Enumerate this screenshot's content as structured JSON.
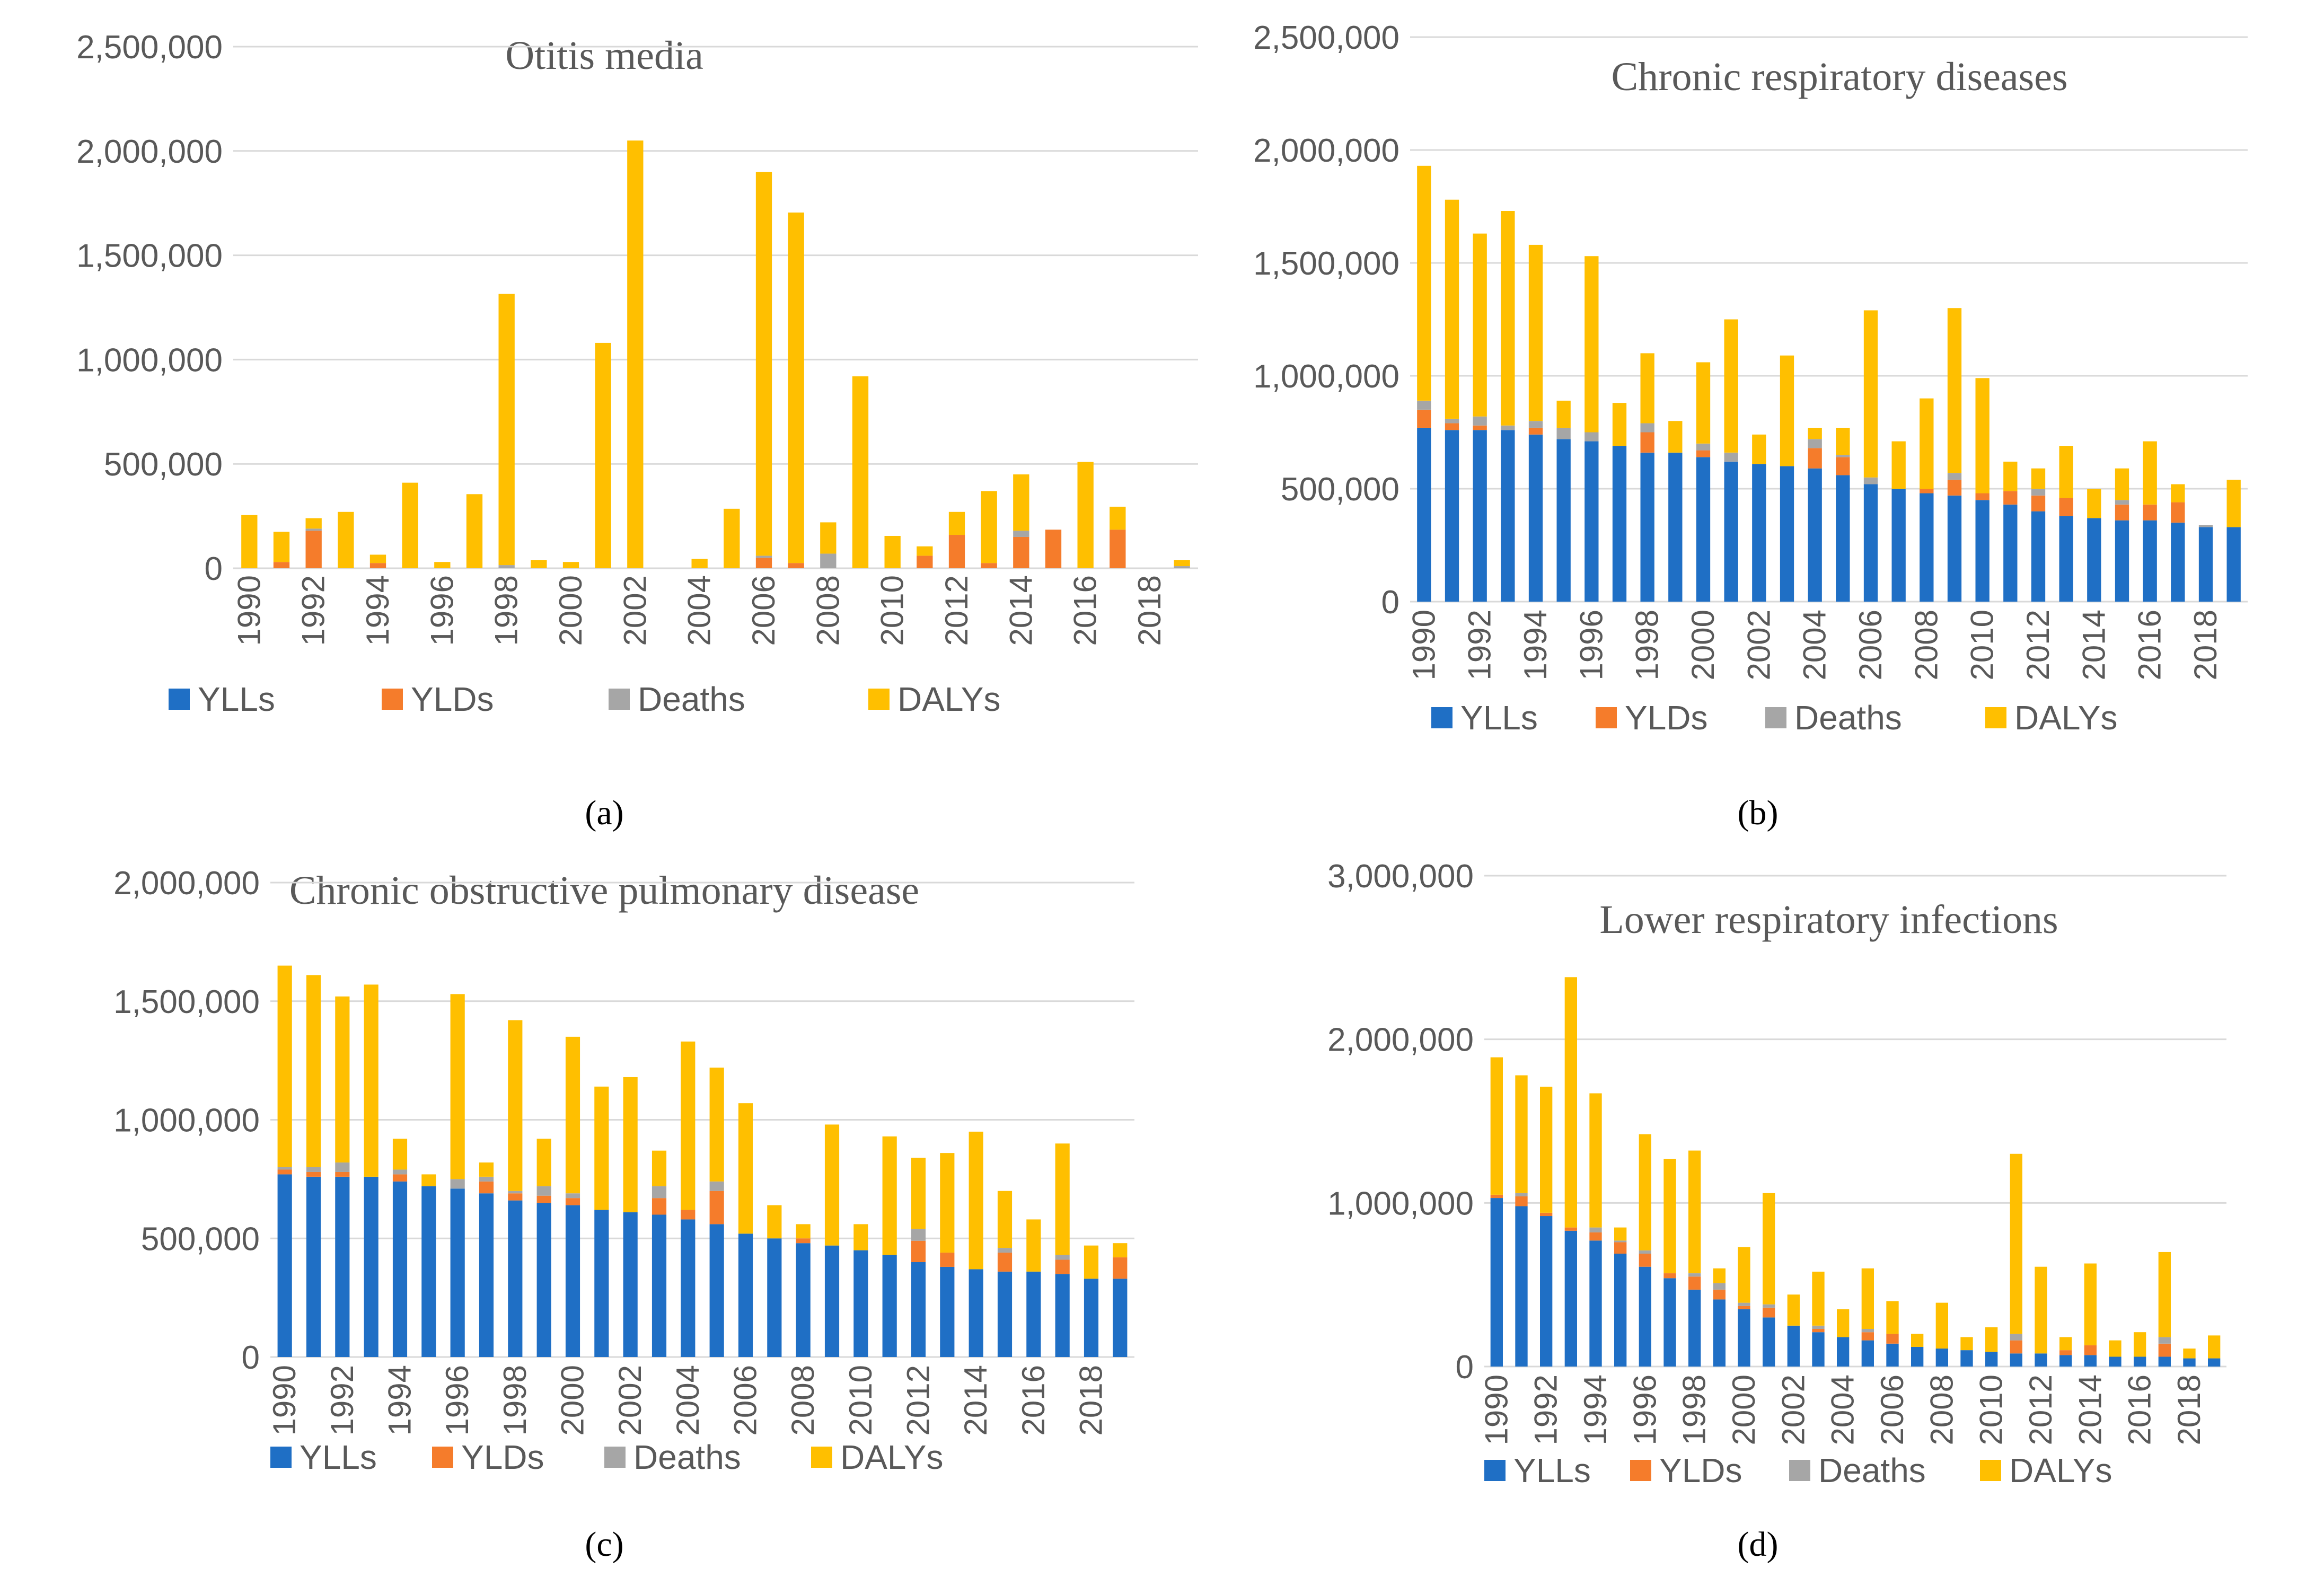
{
  "colors": {
    "YLLs": "#1F6FC5",
    "YLDs": "#F57C2B",
    "Deaths": "#A6A6A6",
    "DALYs": "#FFBF00",
    "grid": "#D9D9D9"
  },
  "chart_data": [
    {
      "id": "a",
      "type": "bar",
      "stacked": true,
      "title": "Otitis media",
      "caption_label": "(a)",
      "ylim": [
        0,
        2500000
      ],
      "yticks": [
        "0",
        "500,000",
        "1,000,000",
        "1,500,000",
        "2,000,000",
        "2,500,000"
      ],
      "xticks": [
        "1990",
        "1992",
        "1994",
        "1996",
        "1998",
        "2000",
        "2002",
        "2004",
        "2006",
        "2008",
        "2010",
        "2012",
        "2014",
        "2016",
        "2018"
      ],
      "legend": [
        "YLLs",
        "YLDs",
        "Deaths",
        "DALYs"
      ],
      "categories": [
        1990,
        1991,
        1992,
        1993,
        1994,
        1995,
        1996,
        1997,
        1998,
        1999,
        2000,
        2001,
        2002,
        2003,
        2004,
        2005,
        2006,
        2007,
        2008,
        2009,
        2010,
        2011,
        2012,
        2013,
        2014,
        2015,
        2016,
        2017,
        2018,
        2019
      ],
      "series": [
        {
          "name": "YLLs",
          "values": [
            0,
            0,
            0,
            0,
            0,
            0,
            0,
            0,
            0,
            0,
            0,
            0,
            0,
            0,
            0,
            0,
            0,
            0,
            0,
            0,
            0,
            0,
            0,
            0,
            0,
            0,
            0,
            0,
            0,
            0
          ]
        },
        {
          "name": "YLDs",
          "values": [
            0,
            30000,
            180000,
            0,
            25000,
            0,
            0,
            0,
            0,
            0,
            0,
            0,
            0,
            0,
            0,
            0,
            50000,
            25000,
            0,
            0,
            0,
            60000,
            160000,
            25000,
            150000,
            185000,
            0,
            185000,
            0,
            0
          ]
        },
        {
          "name": "Deaths",
          "values": [
            0,
            0,
            10000,
            0,
            0,
            0,
            0,
            0,
            15000,
            0,
            0,
            0,
            0,
            0,
            0,
            0,
            10000,
            0,
            70000,
            0,
            0,
            0,
            0,
            0,
            30000,
            0,
            0,
            0,
            0,
            10000
          ]
        },
        {
          "name": "DALYs",
          "values": [
            255000,
            145000,
            50000,
            270000,
            40000,
            410000,
            30000,
            355000,
            1300000,
            40000,
            30000,
            1080000,
            2050000,
            0,
            45000,
            285000,
            1840000,
            1680000,
            150000,
            920000,
            155000,
            45000,
            110000,
            345000,
            270000,
            0,
            510000,
            110000,
            0,
            30000
          ]
        }
      ]
    },
    {
      "id": "b",
      "type": "bar",
      "stacked": true,
      "title": "Chronic respiratory diseases",
      "caption_label": "(b)",
      "ylim": [
        0,
        2500000
      ],
      "yticks": [
        "0",
        "500,000",
        "1,000,000",
        "1,500,000",
        "2,000,000",
        "2,500,000"
      ],
      "xticks": [
        "1990",
        "1992",
        "1994",
        "1996",
        "1998",
        "2000",
        "2002",
        "2004",
        "2006",
        "2008",
        "2010",
        "2012",
        "2014",
        "2016",
        "2018"
      ],
      "legend": [
        "YLLs",
        "YLDs",
        "Deaths",
        "DALYs"
      ],
      "categories": [
        1990,
        1991,
        1992,
        1993,
        1994,
        1995,
        1996,
        1997,
        1998,
        1999,
        2000,
        2001,
        2002,
        2003,
        2004,
        2005,
        2006,
        2007,
        2008,
        2009,
        2010,
        2011,
        2012,
        2013,
        2014,
        2015,
        2016,
        2017,
        2018,
        2019
      ],
      "series": [
        {
          "name": "YLLs",
          "values": [
            770000,
            760000,
            760000,
            760000,
            740000,
            720000,
            710000,
            690000,
            660000,
            660000,
            640000,
            620000,
            610000,
            600000,
            590000,
            560000,
            520000,
            500000,
            480000,
            470000,
            450000,
            430000,
            400000,
            380000,
            370000,
            360000,
            360000,
            350000,
            330000,
            330000
          ]
        },
        {
          "name": "YLDs",
          "values": [
            80000,
            30000,
            20000,
            0,
            30000,
            0,
            0,
            0,
            90000,
            0,
            30000,
            0,
            0,
            0,
            90000,
            80000,
            0,
            0,
            20000,
            70000,
            30000,
            60000,
            70000,
            80000,
            0,
            70000,
            70000,
            90000,
            0,
            0
          ]
        },
        {
          "name": "Deaths",
          "values": [
            40000,
            20000,
            40000,
            20000,
            30000,
            50000,
            40000,
            0,
            40000,
            0,
            30000,
            40000,
            0,
            0,
            40000,
            10000,
            30000,
            0,
            0,
            30000,
            0,
            0,
            30000,
            0,
            0,
            20000,
            0,
            0,
            10000,
            0
          ]
        },
        {
          "name": "DALYs",
          "values": [
            1040000,
            970000,
            810000,
            950000,
            780000,
            120000,
            780000,
            190000,
            310000,
            140000,
            360000,
            590000,
            130000,
            490000,
            50000,
            120000,
            740000,
            210000,
            400000,
            730000,
            510000,
            130000,
            90000,
            230000,
            130000,
            140000,
            280000,
            80000,
            0,
            210000
          ]
        }
      ]
    },
    {
      "id": "c",
      "type": "bar",
      "stacked": true,
      "title": "Chronic obstructive pulmonary disease",
      "caption_label": "(c)",
      "ylim": [
        0,
        2000000
      ],
      "yticks": [
        "0",
        "500,000",
        "1,000,000",
        "1,500,000",
        "2,000,000"
      ],
      "xticks": [
        "1990",
        "1992",
        "1994",
        "1996",
        "1998",
        "2000",
        "2002",
        "2004",
        "2006",
        "2008",
        "2010",
        "2012",
        "2014",
        "2016",
        "2018"
      ],
      "legend": [
        "YLLs",
        "YLDs",
        "Deaths",
        "DALYs"
      ],
      "categories": [
        1990,
        1991,
        1992,
        1993,
        1994,
        1995,
        1996,
        1997,
        1998,
        1999,
        2000,
        2001,
        2002,
        2003,
        2004,
        2005,
        2006,
        2007,
        2008,
        2009,
        2010,
        2011,
        2012,
        2013,
        2014,
        2015,
        2016,
        2017,
        2018,
        2019
      ],
      "series": [
        {
          "name": "YLLs",
          "values": [
            770000,
            760000,
            760000,
            760000,
            740000,
            720000,
            710000,
            690000,
            660000,
            650000,
            640000,
            620000,
            610000,
            600000,
            580000,
            560000,
            520000,
            500000,
            480000,
            470000,
            450000,
            430000,
            400000,
            380000,
            370000,
            360000,
            360000,
            350000,
            330000,
            330000
          ]
        },
        {
          "name": "YLDs",
          "values": [
            20000,
            20000,
            20000,
            0,
            30000,
            0,
            0,
            50000,
            30000,
            30000,
            30000,
            0,
            0,
            70000,
            40000,
            140000,
            0,
            0,
            20000,
            0,
            0,
            0,
            90000,
            60000,
            0,
            80000,
            0,
            60000,
            0,
            90000
          ]
        },
        {
          "name": "Deaths",
          "values": [
            10000,
            20000,
            40000,
            0,
            20000,
            0,
            40000,
            20000,
            10000,
            40000,
            20000,
            0,
            0,
            50000,
            0,
            40000,
            0,
            0,
            0,
            0,
            0,
            0,
            50000,
            0,
            0,
            20000,
            0,
            20000,
            0,
            0
          ]
        },
        {
          "name": "DALYs",
          "values": [
            850000,
            810000,
            700000,
            810000,
            130000,
            50000,
            780000,
            60000,
            720000,
            200000,
            660000,
            520000,
            570000,
            150000,
            710000,
            480000,
            550000,
            140000,
            60000,
            510000,
            110000,
            500000,
            300000,
            420000,
            580000,
            240000,
            220000,
            470000,
            140000,
            60000
          ]
        }
      ]
    },
    {
      "id": "d",
      "type": "bar",
      "stacked": true,
      "title": "Lower respiratory infections",
      "caption_label": "(d)",
      "ylim": [
        0,
        3000000
      ],
      "yticks": [
        "0",
        "1,000,000",
        "2,000,000",
        "3,000,000"
      ],
      "xticks": [
        "1990",
        "1992",
        "1994",
        "1996",
        "1998",
        "2000",
        "2002",
        "2004",
        "2006",
        "2008",
        "2010",
        "2012",
        "2014",
        "2016",
        "2018"
      ],
      "legend": [
        "YLLs",
        "YLDs",
        "Deaths",
        "DALYs"
      ],
      "categories": [
        1990,
        1991,
        1992,
        1993,
        1994,
        1995,
        1996,
        1997,
        1998,
        1999,
        2000,
        2001,
        2002,
        2003,
        2004,
        2005,
        2006,
        2007,
        2008,
        2009,
        2010,
        2011,
        2012,
        2013,
        2014,
        2015,
        2016,
        2017,
        2018,
        2019
      ],
      "series": [
        {
          "name": "YLLs",
          "values": [
            1030000,
            980000,
            920000,
            830000,
            770000,
            690000,
            610000,
            540000,
            470000,
            410000,
            350000,
            300000,
            250000,
            210000,
            180000,
            160000,
            140000,
            120000,
            110000,
            100000,
            90000,
            80000,
            80000,
            70000,
            70000,
            60000,
            60000,
            60000,
            50000,
            50000
          ]
        },
        {
          "name": "YLDs",
          "values": [
            20000,
            60000,
            20000,
            20000,
            50000,
            70000,
            80000,
            30000,
            80000,
            60000,
            20000,
            60000,
            0,
            20000,
            0,
            50000,
            60000,
            0,
            0,
            0,
            0,
            80000,
            0,
            30000,
            60000,
            0,
            0,
            80000,
            0,
            0
          ]
        },
        {
          "name": "Deaths",
          "values": [
            0,
            20000,
            0,
            0,
            30000,
            10000,
            20000,
            0,
            20000,
            40000,
            20000,
            20000,
            0,
            20000,
            0,
            20000,
            0,
            0,
            0,
            0,
            0,
            40000,
            0,
            0,
            0,
            0,
            0,
            40000,
            0,
            0
          ]
        },
        {
          "name": "DALYs",
          "values": [
            840000,
            720000,
            770000,
            1530000,
            820000,
            80000,
            710000,
            700000,
            750000,
            90000,
            340000,
            680000,
            190000,
            330000,
            170000,
            370000,
            200000,
            80000,
            280000,
            80000,
            150000,
            1100000,
            530000,
            80000,
            500000,
            100000,
            150000,
            520000,
            60000,
            140000
          ]
        }
      ]
    }
  ]
}
